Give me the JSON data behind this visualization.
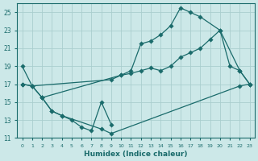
{
  "xlabel": "Humidex (Indice chaleur)",
  "bg_color": "#cce8e8",
  "grid_color": "#aacece",
  "line_color": "#1a6b6b",
  "xlim": [
    -0.5,
    23.5
  ],
  "ylim": [
    11,
    26
  ],
  "yticks": [
    11,
    13,
    15,
    17,
    19,
    21,
    23,
    25
  ],
  "xticks": [
    0,
    1,
    2,
    3,
    4,
    5,
    6,
    7,
    8,
    9,
    10,
    11,
    12,
    13,
    14,
    15,
    16,
    17,
    18,
    19,
    20,
    21,
    22,
    23
  ],
  "line1_x": [
    0,
    1,
    2,
    10,
    11,
    12,
    13,
    14,
    15,
    16,
    17,
    18,
    20,
    21,
    22,
    23
  ],
  "line1_y": [
    19,
    16.8,
    15.5,
    18.0,
    18.5,
    21.5,
    21.8,
    22.5,
    23.5,
    25.5,
    25.0,
    24.5,
    23.0,
    19.0,
    18.5,
    17.0
  ],
  "line2_x": [
    0,
    1,
    9,
    10,
    11,
    12,
    13,
    14,
    15,
    16,
    17,
    18,
    19,
    20,
    22,
    23
  ],
  "line2_y": [
    17.0,
    16.8,
    17.5,
    18.0,
    18.2,
    18.5,
    18.8,
    18.5,
    19.0,
    20.0,
    20.5,
    21.0,
    22.0,
    23.0,
    18.5,
    17.0
  ],
  "line3_x": [
    0,
    1,
    2,
    3,
    4,
    8,
    9,
    22,
    23
  ],
  "line3_y": [
    17.0,
    16.8,
    15.5,
    14.0,
    13.5,
    12.0,
    11.5,
    16.8,
    17.0
  ],
  "line4_x": [
    2,
    3,
    4,
    5,
    6,
    7,
    8,
    9
  ],
  "line4_y": [
    15.5,
    14.0,
    13.5,
    13.0,
    12.2,
    11.8,
    15.0,
    12.5
  ]
}
